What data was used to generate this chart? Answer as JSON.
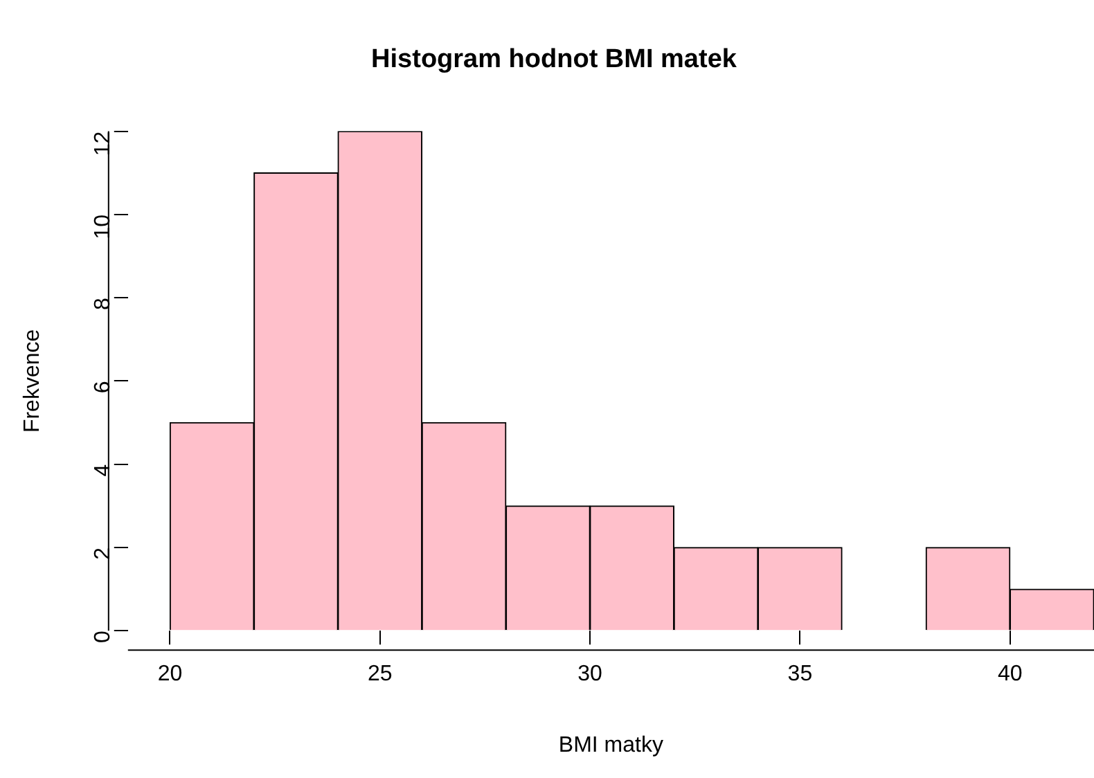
{
  "chart_data": {
    "type": "histogram",
    "title": "Histogram hodnot BMI matek",
    "xlabel": "BMI matky",
    "ylabel": "Frekvence",
    "bins": [
      20,
      22,
      24,
      26,
      28,
      30,
      32,
      34,
      36,
      38,
      40,
      42
    ],
    "values": [
      5,
      11,
      12,
      5,
      3,
      3,
      2,
      2,
      0,
      2,
      1
    ],
    "color": "#ffc0cb",
    "xlim": [
      19,
      42
    ],
    "ylim": [
      0,
      12
    ],
    "xticks": [
      20,
      25,
      30,
      35,
      40
    ],
    "yticks": [
      0,
      2,
      4,
      6,
      8,
      10,
      12
    ]
  }
}
